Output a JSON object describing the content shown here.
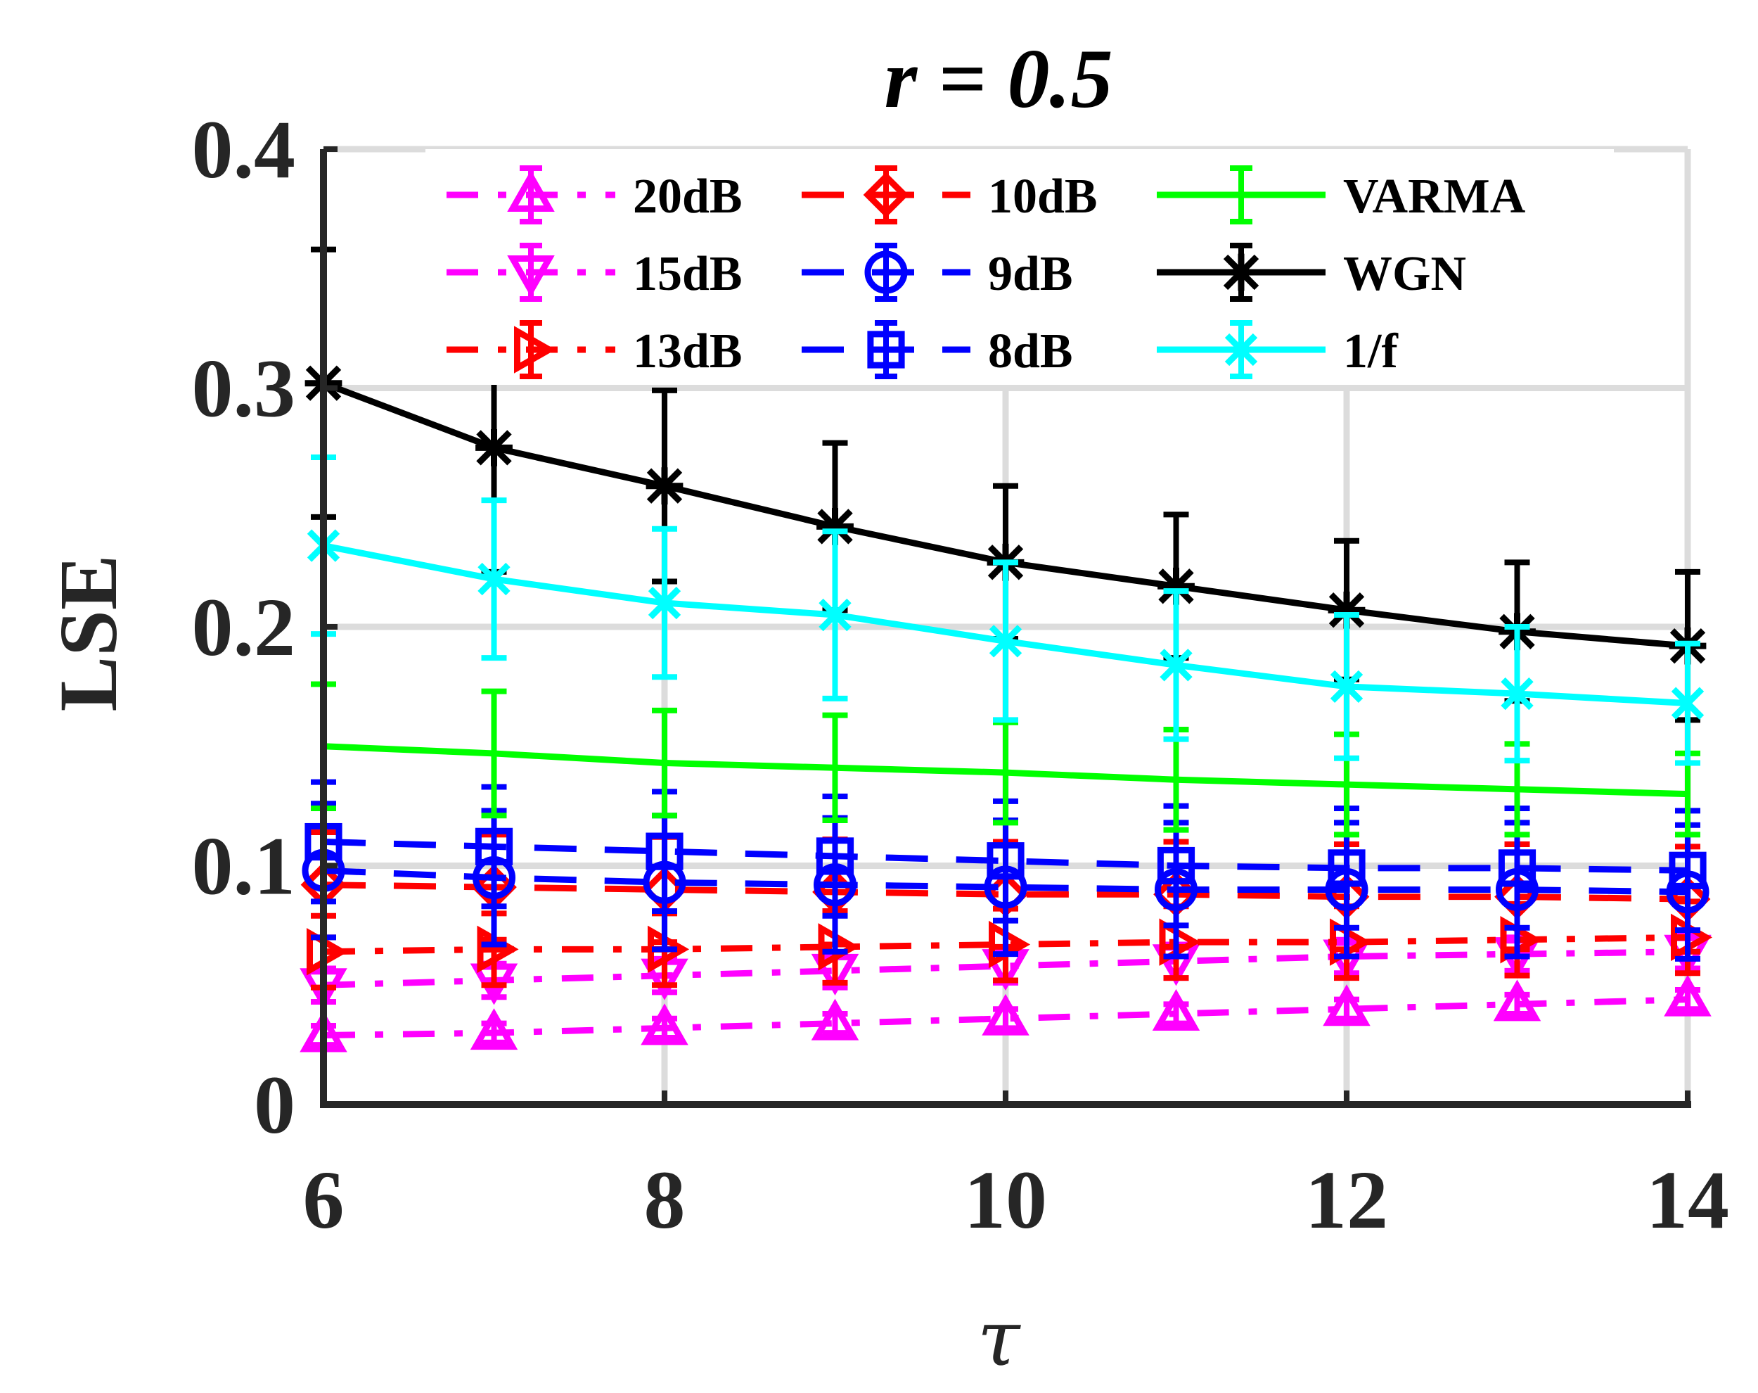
{
  "chart_data": {
    "type": "line",
    "title": "r = 0.5",
    "xlabel": "τ",
    "ylabel": "LSE",
    "xlim": [
      6,
      14
    ],
    "ylim": [
      0,
      0.4
    ],
    "xticks": [
      6,
      8,
      10,
      12,
      14
    ],
    "xtick_labels": [
      "6",
      "8",
      "10",
      "12",
      "14"
    ],
    "yticks": [
      0,
      0.1,
      0.2,
      0.3,
      0.4
    ],
    "ytick_labels": [
      "0",
      "0.1",
      "0.2",
      "0.3",
      "0.4"
    ],
    "grid": true,
    "legend_position": "top",
    "x": [
      6,
      7,
      8,
      9,
      10,
      11,
      12,
      13,
      14
    ],
    "series": [
      {
        "name": "20dB",
        "color": "#ff00ff",
        "dash": "dashdot",
        "marker": "triangle-up",
        "values": [
          0.029,
          0.03,
          0.032,
          0.034,
          0.036,
          0.038,
          0.04,
          0.042,
          0.044
        ],
        "errors": [
          0.004,
          0.004,
          0.004,
          0.004,
          0.004,
          0.004,
          0.004,
          0.004,
          0.004
        ]
      },
      {
        "name": "15dB",
        "color": "#ff00ff",
        "dash": "dashdot",
        "marker": "triangle-down",
        "values": [
          0.05,
          0.052,
          0.054,
          0.056,
          0.058,
          0.06,
          0.062,
          0.063,
          0.064
        ],
        "errors": [
          0.007,
          0.007,
          0.007,
          0.007,
          0.007,
          0.007,
          0.007,
          0.007,
          0.007
        ]
      },
      {
        "name": "13dB",
        "color": "#ff0000",
        "dash": "dashdot",
        "marker": "triangle-right",
        "values": [
          0.064,
          0.065,
          0.065,
          0.066,
          0.067,
          0.068,
          0.068,
          0.069,
          0.07
        ],
        "errors": [
          0.015,
          0.015,
          0.015,
          0.015,
          0.015,
          0.015,
          0.015,
          0.015,
          0.015
        ]
      },
      {
        "name": "10dB",
        "color": "#ff0000",
        "dash": "dash",
        "marker": "diamond",
        "values": [
          0.092,
          0.091,
          0.09,
          0.089,
          0.088,
          0.088,
          0.087,
          0.087,
          0.086
        ],
        "errors": [
          0.022,
          0.022,
          0.022,
          0.022,
          0.022,
          0.022,
          0.022,
          0.022,
          0.022
        ]
      },
      {
        "name": "9dB",
        "color": "#0000ff",
        "dash": "dash",
        "marker": "circle",
        "values": [
          0.098,
          0.095,
          0.093,
          0.092,
          0.091,
          0.09,
          0.09,
          0.09,
          0.089
        ],
        "errors": [
          0.028,
          0.028,
          0.028,
          0.028,
          0.028,
          0.028,
          0.028,
          0.028,
          0.028
        ]
      },
      {
        "name": "8dB",
        "color": "#0000ff",
        "dash": "dash",
        "marker": "square",
        "values": [
          0.11,
          0.108,
          0.106,
          0.104,
          0.102,
          0.1,
          0.099,
          0.099,
          0.098
        ],
        "errors": [
          0.025,
          0.025,
          0.025,
          0.025,
          0.025,
          0.025,
          0.025,
          0.025,
          0.025
        ]
      },
      {
        "name": "VARMA",
        "color": "#00ff00",
        "dash": "solid",
        "marker": "none",
        "values": [
          0.15,
          0.147,
          0.143,
          0.141,
          0.139,
          0.136,
          0.134,
          0.132,
          0.13
        ],
        "errors": [
          0.026,
          0.026,
          0.022,
          0.022,
          0.021,
          0.021,
          0.021,
          0.019,
          0.017
        ]
      },
      {
        "name": "WGN",
        "color": "#000000",
        "dash": "solid",
        "marker": "star",
        "values": [
          0.302,
          0.275,
          0.259,
          0.242,
          0.227,
          0.217,
          0.207,
          0.198,
          0.192
        ],
        "errors": [
          0.056,
          0.052,
          0.04,
          0.035,
          0.032,
          0.03,
          0.029,
          0.029,
          0.031
        ]
      },
      {
        "name": "1/f",
        "color": "#00ffff",
        "dash": "solid",
        "marker": "x",
        "values": [
          0.234,
          0.22,
          0.21,
          0.205,
          0.194,
          0.184,
          0.175,
          0.172,
          0.168
        ],
        "errors": [
          0.037,
          0.033,
          0.031,
          0.035,
          0.033,
          0.031,
          0.03,
          0.028,
          0.025
        ]
      }
    ]
  }
}
